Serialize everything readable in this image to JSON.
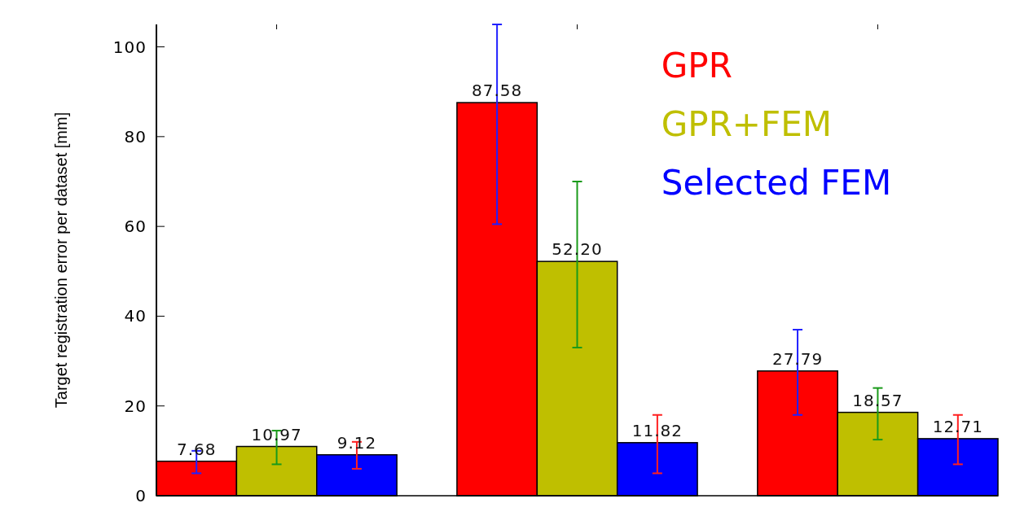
{
  "chart_data": {
    "type": "bar",
    "ylabel": "Target registration error per dataset [mm]",
    "categories": [
      null,
      null,
      null
    ],
    "series": [
      {
        "name": "GPR",
        "color": "#ff0000",
        "values": [
          7.68,
          87.58,
          27.79
        ],
        "value_labels": [
          "7.68",
          "87.58",
          "27.79"
        ],
        "errors": [
          [
            5,
            10
          ],
          [
            60.5,
            105
          ],
          [
            18,
            37
          ]
        ]
      },
      {
        "name": "GPR+FEM",
        "color": "#bfbf00",
        "values": [
          10.97,
          52.2,
          18.57
        ],
        "value_labels": [
          "10.97",
          "52.20",
          "18.57"
        ],
        "errors": [
          [
            7,
            14.5
          ],
          [
            33,
            70
          ],
          [
            12.5,
            24
          ]
        ]
      },
      {
        "name": "Selected FEM",
        "color": "#0000ff",
        "values": [
          9.12,
          11.82,
          12.71
        ],
        "value_labels": [
          "9.12",
          "11.82",
          "12.71"
        ],
        "errors": [
          [
            6,
            12
          ],
          [
            5,
            18
          ],
          [
            7,
            18
          ]
        ]
      }
    ],
    "ylim": [
      0,
      105
    ],
    "yticks": [
      0,
      20,
      40,
      60,
      80,
      100
    ],
    "legend": "top right"
  }
}
